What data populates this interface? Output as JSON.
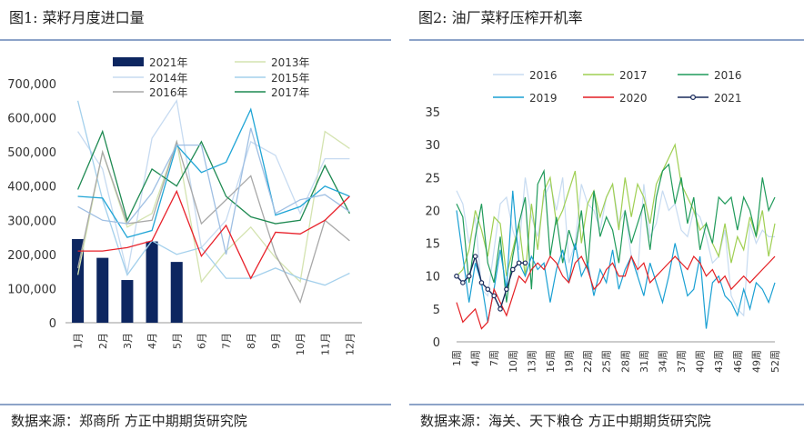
{
  "left": {
    "title": "图1: 菜籽月度进口量",
    "source": "数据来源：郑商所  方正中期期货研究院"
  },
  "right": {
    "title": "图2: 油厂菜籽压榨开机率",
    "source": "数据来源：海关、天下粮仓  方正中期期货研究院"
  },
  "chart_data": [
    {
      "type": "bar",
      "title": "",
      "categories": [
        "1月",
        "2月",
        "3月",
        "4月",
        "5月",
        "6月",
        "7月",
        "8月",
        "9月",
        "10月",
        "11月",
        "12月"
      ],
      "y_ticks": [
        "0",
        "100,000",
        "200,000",
        "300,000",
        "400,000",
        "500,000",
        "600,000",
        "700,000"
      ],
      "ylim": [
        0,
        700000
      ],
      "legend": [
        "2021年",
        "2013年",
        "2014年",
        "2015年",
        "2016年",
        "2017年"
      ],
      "series": [
        {
          "name": "2021年",
          "type": "bar",
          "color": "#0d2660",
          "values": [
            245000,
            190000,
            125000,
            238000,
            178000,
            null,
            null,
            null,
            null,
            null,
            null,
            null
          ]
        },
        {
          "name": "2013年",
          "type": "line",
          "color": "#d4e3b0",
          "values": [
            140000,
            500000,
            280000,
            320000,
            530000,
            120000,
            210000,
            280000,
            190000,
            120000,
            560000,
            510000
          ]
        },
        {
          "name": "2014年",
          "type": "line",
          "color": "#c7dbf1",
          "values": [
            560000,
            450000,
            145000,
            540000,
            650000,
            220000,
            300000,
            530000,
            490000,
            320000,
            480000,
            480000
          ]
        },
        {
          "name": "2015年",
          "type": "line",
          "color": "#a4d0ec",
          "values": [
            650000,
            360000,
            140000,
            240000,
            200000,
            220000,
            130000,
            130000,
            160000,
            130000,
            110000,
            145000
          ]
        },
        {
          "name": "2016年",
          "type": "line",
          "color": "#a8a8a8",
          "values": [
            160000,
            500000,
            290000,
            300000,
            530000,
            290000,
            360000,
            430000,
            200000,
            60000,
            300000,
            240000
          ]
        },
        {
          "name": "2017年",
          "type": "line",
          "color": "#1f8a52",
          "values": [
            390000,
            560000,
            300000,
            450000,
            400000,
            530000,
            370000,
            310000,
            290000,
            300000,
            460000,
            320000
          ]
        },
        {
          "name": "",
          "type": "line",
          "color": "#20a5d6",
          "values": [
            370000,
            365000,
            250000,
            270000,
            520000,
            440000,
            470000,
            625000,
            315000,
            340000,
            400000,
            370000
          ]
        },
        {
          "name": "",
          "type": "line",
          "color": "#9fbfe3",
          "values": [
            340000,
            300000,
            290000,
            380000,
            520000,
            520000,
            200000,
            570000,
            320000,
            360000,
            375000,
            325000
          ]
        },
        {
          "name": "",
          "type": "line",
          "color": "#e8212a",
          "values": [
            210000,
            210000,
            220000,
            240000,
            385000,
            195000,
            285000,
            130000,
            265000,
            260000,
            300000,
            370000
          ]
        }
      ]
    },
    {
      "type": "line",
      "title": "",
      "x_ticks": [
        "1周",
        "4周",
        "7周",
        "10周",
        "13周",
        "16周",
        "19周",
        "22周",
        "25周",
        "28周",
        "31周",
        "34周",
        "37周",
        "40周",
        "43周",
        "46周",
        "49周",
        "52周"
      ],
      "y_ticks": [
        "0",
        "5",
        "10",
        "15",
        "20",
        "25",
        "30",
        "35"
      ],
      "ylim": [
        0,
        35
      ],
      "x_range": [
        1,
        52
      ],
      "legend": [
        "2016",
        "2017",
        "2016",
        "2019",
        "2020",
        "2021"
      ],
      "series": [
        {
          "name": "2016",
          "color": "#c7dbf1",
          "values": [
            23,
            21,
            15,
            19,
            8,
            7,
            14,
            21,
            22,
            17,
            14,
            25,
            19,
            16,
            22,
            24,
            20,
            25,
            12,
            15,
            24,
            21,
            20,
            17,
            22,
            24,
            18,
            20,
            13,
            10,
            24,
            16,
            18,
            23,
            20,
            21,
            17,
            16,
            20,
            19,
            16,
            12,
            13,
            17,
            7,
            5,
            4,
            18,
            15,
            17,
            16,
            16
          ]
        },
        {
          "name": "2017",
          "color": "#9fcf52",
          "values": [
            10,
            11,
            14,
            20,
            17,
            13,
            19,
            18,
            10,
            14,
            18,
            10,
            21,
            14,
            23,
            25,
            18,
            20,
            23,
            26,
            15,
            21,
            23,
            19,
            22,
            24,
            17,
            25,
            19,
            24,
            22,
            18,
            24,
            26,
            28,
            30,
            24,
            22,
            20,
            17,
            18,
            15,
            13,
            18,
            12,
            16,
            14,
            19,
            16,
            20,
            13,
            18
          ]
        },
        {
          "name": "2016",
          "color": "#1f9a5a",
          "values": [
            21,
            19,
            9,
            16,
            21,
            12,
            9,
            16,
            6,
            13,
            18,
            22,
            8,
            24,
            26,
            13,
            19,
            12,
            17,
            14,
            20,
            11,
            23,
            16,
            19,
            17,
            12,
            20,
            15,
            18,
            21,
            14,
            22,
            26,
            27,
            21,
            25,
            18,
            22,
            14,
            18,
            15,
            22,
            21,
            22,
            17,
            22,
            20,
            16,
            25,
            20,
            22
          ]
        },
        {
          "name": "2019",
          "color": "#1aa0d3",
          "values": [
            20,
            13,
            6,
            12,
            9,
            3,
            8,
            14,
            8,
            23,
            12,
            10,
            13,
            11,
            12,
            6,
            11,
            14,
            9,
            15,
            10,
            12,
            7,
            11,
            9,
            14,
            8,
            11,
            13,
            10,
            7,
            12,
            9,
            6,
            10,
            15,
            11,
            7,
            8,
            13,
            2,
            9,
            10,
            7,
            6,
            4,
            8,
            5,
            9,
            8,
            6,
            9
          ]
        },
        {
          "name": "2020",
          "color": "#e41f23",
          "values": [
            6,
            3,
            4,
            5,
            2,
            3,
            8,
            6,
            4,
            7,
            10,
            9,
            11,
            12,
            11,
            13,
            12,
            10,
            9,
            12,
            13,
            11,
            8,
            9,
            11,
            12,
            10,
            10,
            13,
            11,
            12,
            9,
            10,
            11,
            12,
            13,
            12,
            11,
            13,
            12,
            10,
            11,
            9,
            10,
            8,
            9,
            10,
            9,
            10,
            11,
            12,
            13
          ]
        },
        {
          "name": "2021",
          "color": "#1a2b5c",
          "values": [
            10,
            9,
            10,
            13,
            9,
            8,
            7,
            5,
            8,
            11,
            12,
            12,
            null,
            null,
            null,
            null,
            null,
            null,
            null,
            null,
            null,
            null,
            null,
            null,
            null,
            null,
            null,
            null,
            null,
            null,
            null,
            null,
            null,
            null,
            null,
            null,
            null,
            null,
            null,
            null,
            null,
            null,
            null,
            null,
            null,
            null,
            null,
            null,
            null,
            null,
            null,
            null
          ]
        }
      ]
    }
  ]
}
